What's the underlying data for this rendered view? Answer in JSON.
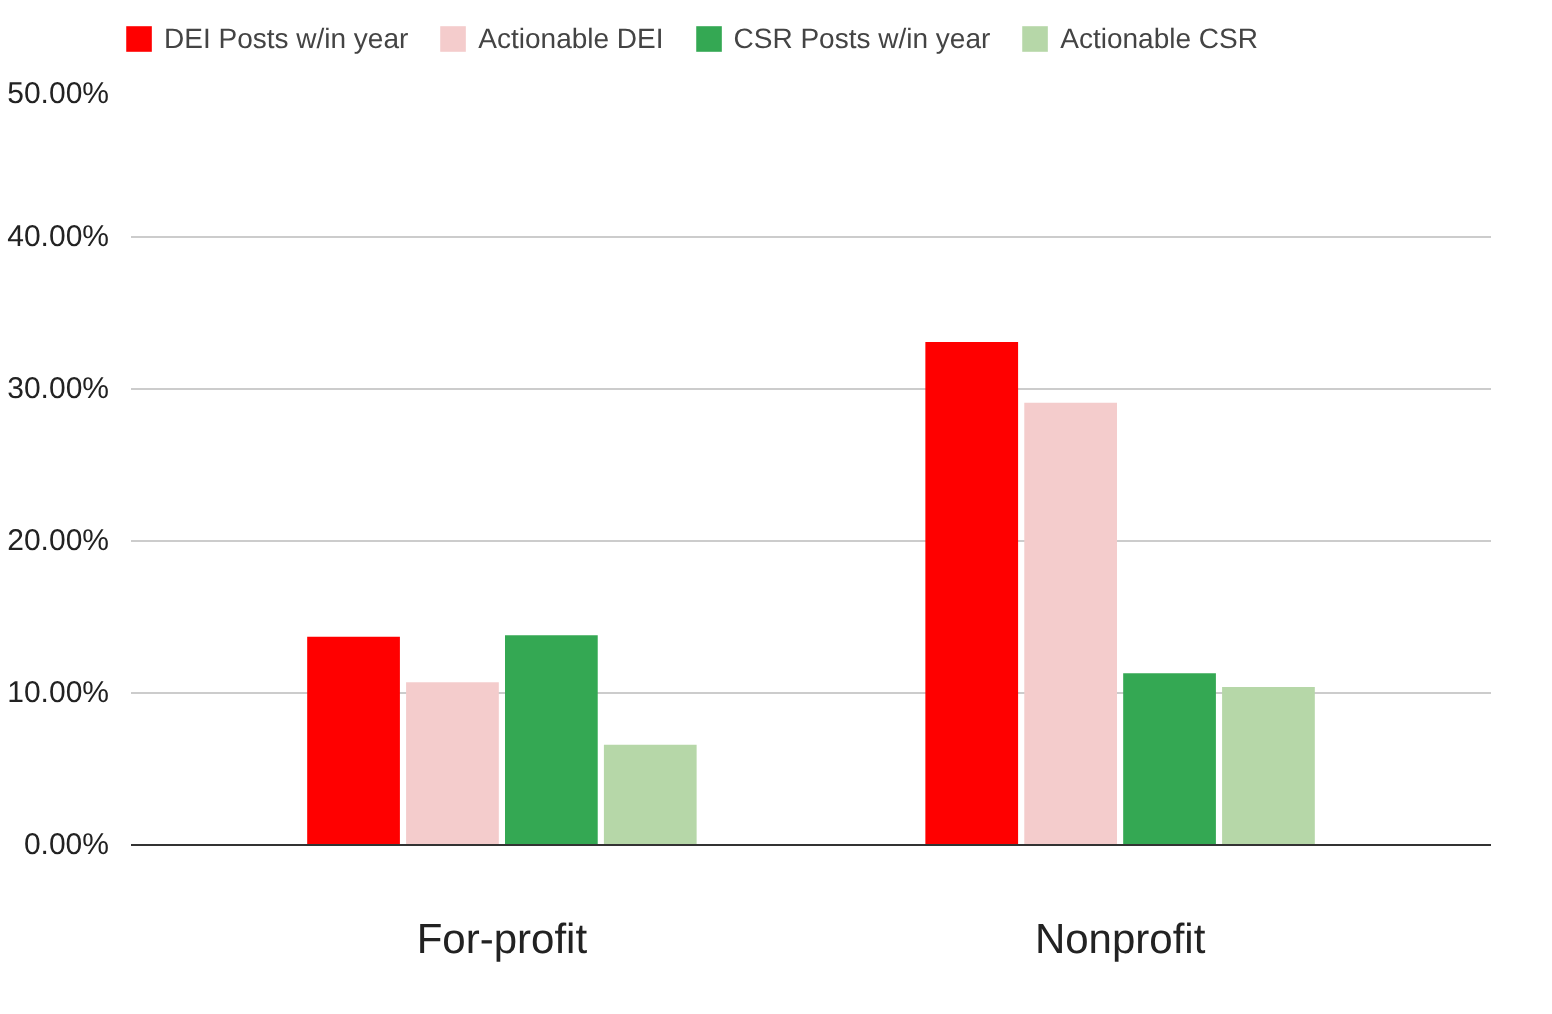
{
  "chart_data": {
    "type": "bar",
    "categories": [
      "For-profit",
      "Nonprofit"
    ],
    "series": [
      {
        "name": "DEI Posts w/in year",
        "color": "#ff0000",
        "values": [
          13.7,
          33.1
        ]
      },
      {
        "name": "Actionable DEI",
        "color": "#f4cccc",
        "values": [
          10.7,
          29.1
        ]
      },
      {
        "name": "CSR Posts w/in year",
        "color": "#34a853",
        "values": [
          13.8,
          11.3
        ]
      },
      {
        "name": "Actionable CSR",
        "color": "#b6d7a8",
        "values": [
          6.6,
          10.4
        ]
      }
    ],
    "ylim": [
      0,
      50
    ],
    "yticks": [
      {
        "value": 0,
        "label": "0.00%"
      },
      {
        "value": 10,
        "label": "10.00%"
      },
      {
        "value": 20,
        "label": "20.00%"
      },
      {
        "value": 30,
        "label": "30.00%"
      },
      {
        "value": 40,
        "label": "40.00%"
      },
      {
        "value": 50,
        "label": "50.00%"
      }
    ],
    "grid": "y",
    "legend": "top"
  }
}
